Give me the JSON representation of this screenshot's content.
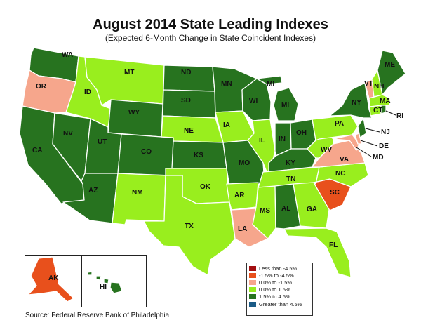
{
  "title": "August 2014 State Leading Indexes",
  "subtitle": "(Expected 6-Month Change in State Coincident Indexes)",
  "source": "Source: Federal Reserve Bank of Philadelphia",
  "colors": {
    "less_than_neg_4_5": "#a30f11",
    "neg_4_5_to_neg_1_5": "#e8501c",
    "neg_1_5_to_0": "#f6a68c",
    "0_to_1_5": "#99ee1e",
    "1_5_to_4_5": "#27731f",
    "greater_than_4_5": "#1b5b86"
  },
  "legend": [
    {
      "label": "Less than -4.5%",
      "color": "#a30f11"
    },
    {
      "label": "-1.5% to -4.5%",
      "color": "#e8501c"
    },
    {
      "label": "0.0% to -1.5%",
      "color": "#f6a68c"
    },
    {
      "label": "0.0% to  1.5%",
      "color": "#99ee1e"
    },
    {
      "label": "1.5% to  4.5%",
      "color": "#27731f"
    },
    {
      "label": "Greater than 4.5%",
      "color": "#1b5b86"
    }
  ],
  "states": {
    "WA": {
      "label": "WA",
      "class": "1.5% to  4.5%"
    },
    "OR": {
      "label": "OR",
      "class": "0.0% to -1.5%"
    },
    "CA": {
      "label": "CA",
      "class": "1.5% to  4.5%"
    },
    "NV": {
      "label": "NV",
      "class": "1.5% to  4.5%"
    },
    "ID": {
      "label": "ID",
      "class": "0.0% to  1.5%"
    },
    "MT": {
      "label": "MT",
      "class": "0.0% to  1.5%"
    },
    "WY": {
      "label": "WY",
      "class": "1.5% to  4.5%"
    },
    "UT": {
      "label": "UT",
      "class": "1.5% to  4.5%"
    },
    "AZ": {
      "label": "AZ",
      "class": "1.5% to  4.5%"
    },
    "CO": {
      "label": "CO",
      "class": "1.5% to  4.5%"
    },
    "NM": {
      "label": "NM",
      "class": "0.0% to  1.5%"
    },
    "ND": {
      "label": "ND",
      "class": "1.5% to  4.5%"
    },
    "SD": {
      "label": "SD",
      "class": "1.5% to  4.5%"
    },
    "NE": {
      "label": "NE",
      "class": "0.0% to  1.5%"
    },
    "KS": {
      "label": "KS",
      "class": "1.5% to  4.5%"
    },
    "OK": {
      "label": "OK",
      "class": "0.0% to  1.5%"
    },
    "TX": {
      "label": "TX",
      "class": "0.0% to  1.5%"
    },
    "MN": {
      "label": "MN",
      "class": "1.5% to  4.5%"
    },
    "IA": {
      "label": "IA",
      "class": "0.0% to  1.5%"
    },
    "MO": {
      "label": "MO",
      "class": "1.5% to  4.5%"
    },
    "AR": {
      "label": "AR",
      "class": "0.0% to  1.5%"
    },
    "LA": {
      "label": "LA",
      "class": "0.0% to -1.5%"
    },
    "WI": {
      "label": "WI",
      "class": "1.5% to  4.5%"
    },
    "IL": {
      "label": "IL",
      "class": "0.0% to  1.5%"
    },
    "MI": {
      "label": "MI",
      "class": "1.5% to  4.5%"
    },
    "IN": {
      "label": "IN",
      "class": "1.5% to  4.5%"
    },
    "OH": {
      "label": "OH",
      "class": "1.5% to  4.5%"
    },
    "KY": {
      "label": "KY",
      "class": "1.5% to  4.5%"
    },
    "TN": {
      "label": "TN",
      "class": "0.0% to  1.5%"
    },
    "MS": {
      "label": "MS",
      "class": "0.0% to  1.5%"
    },
    "AL": {
      "label": "AL",
      "class": "1.5% to  4.5%"
    },
    "GA": {
      "label": "GA",
      "class": "0.0% to  1.5%"
    },
    "FL": {
      "label": "FL",
      "class": "0.0% to  1.5%"
    },
    "SC": {
      "label": "SC",
      "class": "-1.5% to -4.5%"
    },
    "NC": {
      "label": "NC",
      "class": "0.0% to  1.5%"
    },
    "VA": {
      "label": "VA",
      "class": "0.0% to -1.5%"
    },
    "WV": {
      "label": "WV",
      "class": "0.0% to  1.5%"
    },
    "PA": {
      "label": "PA",
      "class": "0.0% to  1.5%"
    },
    "NY": {
      "label": "NY",
      "class": "1.5% to  4.5%"
    },
    "NJ": {
      "label": "NJ",
      "class": "1.5% to  4.5%"
    },
    "DE": {
      "label": "DE",
      "class": "0.0% to -1.5%"
    },
    "MD": {
      "label": "MD",
      "class": "0.0% to -1.5%"
    },
    "VT": {
      "label": "VT",
      "class": "0.0% to -1.5%"
    },
    "NH": {
      "label": "NH",
      "class": "0.0% to  1.5%"
    },
    "ME": {
      "label": "ME",
      "class": "1.5% to  4.5%"
    },
    "MA": {
      "label": "MA",
      "class": "0.0% to  1.5%"
    },
    "CT": {
      "label": "CT",
      "class": "0.0% to  1.5%"
    },
    "RI": {
      "label": "RI",
      "class": "1.5% to  4.5%"
    },
    "AK": {
      "label": "AK",
      "class": "-1.5% to -4.5%"
    },
    "HI": {
      "label": "HI",
      "class": "1.5% to  4.5%"
    }
  }
}
